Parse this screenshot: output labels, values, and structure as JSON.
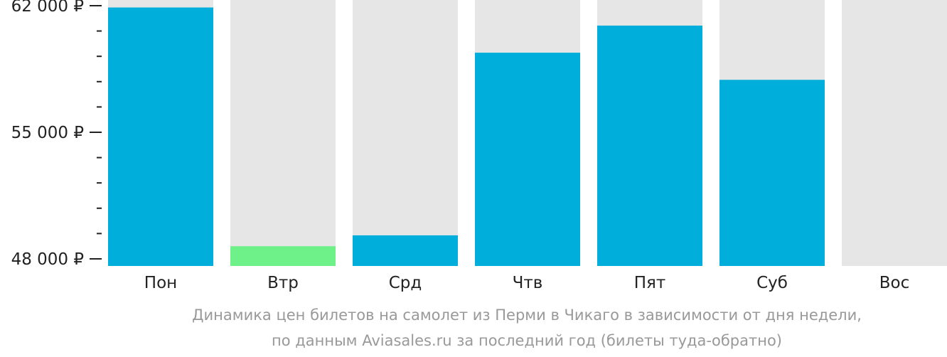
{
  "chart_data": {
    "type": "bar",
    "categories": [
      "Пон",
      "Втр",
      "Срд",
      "Чтв",
      "Пят",
      "Суб",
      "Вос"
    ],
    "values": [
      61900,
      48700,
      49300,
      59400,
      60900,
      57900,
      null
    ],
    "highlight_index": 1,
    "ylim": [
      48000,
      62000
    ],
    "yticks": [
      {
        "value": 62000,
        "label": "62 000 ₽"
      },
      {
        "value": 55000,
        "label": "55 000 ₽"
      },
      {
        "value": 48000,
        "label": "48 000 ₽"
      }
    ],
    "minor_tick_step": 1400,
    "colors": {
      "bar": "#00aedb",
      "highlight": "#6ef189",
      "track": "#e6e6e6",
      "axis_text": "#222222",
      "caption": "#999999"
    }
  },
  "caption": {
    "line1": "Динамика цен билетов на самолет из Перми в Чикаго в зависимости от дня недели,",
    "line2": "по данным Aviasales.ru за последний год (билеты туда-обратно)"
  }
}
